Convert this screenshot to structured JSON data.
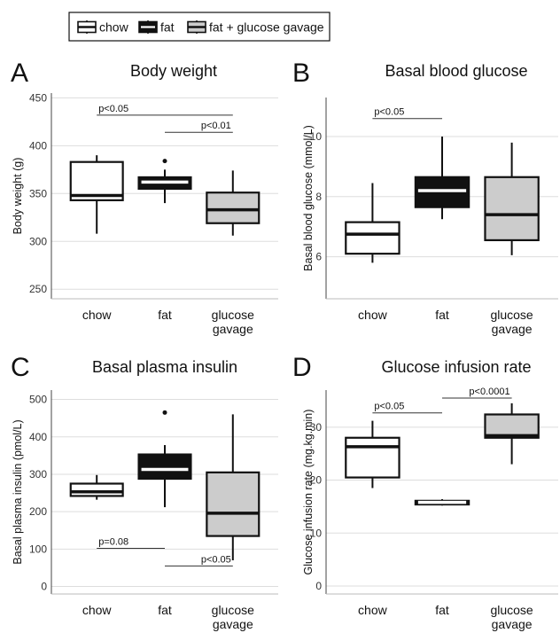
{
  "legend": {
    "items": [
      {
        "label": "chow",
        "fill": "#ffffff",
        "median": "#111111"
      },
      {
        "label": "fat",
        "fill": "#111111",
        "median": "#ffffff"
      },
      {
        "label": "fat + glucose gavage",
        "fill": "#cccccc",
        "median": "#111111"
      }
    ]
  },
  "chart_data": [
    {
      "type": "box",
      "panel": "A",
      "title": "Body weight",
      "ylabel": "Body weight (g)",
      "ylim": [
        240,
        455
      ],
      "yticks": [
        250,
        300,
        350,
        400,
        450
      ],
      "categories": [
        "chow",
        "fat",
        "glucose\ngavage"
      ],
      "boxes": [
        {
          "min": 308,
          "q1": 343,
          "median": 348,
          "q3": 383,
          "max": 390,
          "outliers": [],
          "fill": "#ffffff",
          "median_color": "#111111"
        },
        {
          "min": 340,
          "q1": 355,
          "median": 362,
          "q3": 367,
          "max": 375,
          "outliers": [
            384
          ],
          "fill": "#111111",
          "median_color": "#ffffff"
        },
        {
          "min": 306,
          "q1": 319,
          "median": 333,
          "q3": 351,
          "max": 374,
          "outliers": [],
          "fill": "#cccccc",
          "median_color": "#111111"
        }
      ],
      "annotations": [
        {
          "from": 0,
          "to": 2,
          "y": 432,
          "label": "p<0.05",
          "label_anchor": "start"
        },
        {
          "from": 1,
          "to": 2,
          "y": 414,
          "label": "p<0.01",
          "label_anchor": "end"
        }
      ]
    },
    {
      "type": "box",
      "panel": "B",
      "title": "Basal blood glucose",
      "ylabel": "Basal blood glucose (mmol/L)",
      "ylim": [
        4.6,
        11.3
      ],
      "yticks": [
        6,
        8,
        10
      ],
      "categories": [
        "chow",
        "fat",
        "glucose\ngavage"
      ],
      "boxes": [
        {
          "min": 5.8,
          "q1": 6.1,
          "median": 6.75,
          "q3": 7.15,
          "max": 8.45,
          "outliers": [],
          "fill": "#ffffff",
          "median_color": "#111111"
        },
        {
          "min": 7.25,
          "q1": 7.65,
          "median": 8.2,
          "q3": 8.65,
          "max": 10.0,
          "outliers": [],
          "fill": "#111111",
          "median_color": "#ffffff"
        },
        {
          "min": 6.05,
          "q1": 6.55,
          "median": 7.4,
          "q3": 8.65,
          "max": 9.8,
          "outliers": [],
          "fill": "#cccccc",
          "median_color": "#111111"
        }
      ],
      "annotations": [
        {
          "from": 0,
          "to": 1,
          "y": 10.6,
          "label": "p<0.05",
          "label_anchor": "start"
        }
      ]
    },
    {
      "type": "box",
      "panel": "C",
      "title": "Basal plasma insulin",
      "ylabel": "Basal plasma insulin (pmol/L)",
      "ylim": [
        -20,
        525
      ],
      "yticks": [
        0,
        100,
        200,
        300,
        400,
        500
      ],
      "categories": [
        "chow",
        "fat",
        "glucose\ngavage"
      ],
      "boxes": [
        {
          "min": 232,
          "q1": 242,
          "median": 253,
          "q3": 275,
          "max": 298,
          "outliers": [],
          "fill": "#ffffff",
          "median_color": "#111111"
        },
        {
          "min": 212,
          "q1": 288,
          "median": 313,
          "q3": 353,
          "max": 378,
          "outliers": [
            465
          ],
          "fill": "#111111",
          "median_color": "#ffffff"
        },
        {
          "min": 70,
          "q1": 135,
          "median": 196,
          "q3": 305,
          "max": 460,
          "outliers": [],
          "fill": "#cccccc",
          "median_color": "#111111"
        }
      ],
      "annotations": [
        {
          "from": 0,
          "to": 1,
          "y": 102,
          "label": "p=0.08",
          "label_anchor": "start"
        },
        {
          "from": 1,
          "to": 2,
          "y": 55,
          "label": "p<0.05",
          "label_anchor": "end"
        }
      ]
    },
    {
      "type": "box",
      "panel": "D",
      "title": "Glucose infusion rate",
      "ylabel": "Glucose infusion rate (mg.kg.min)",
      "ylim": [
        -1.5,
        37
      ],
      "yticks": [
        0,
        10,
        20,
        30
      ],
      "categories": [
        "chow",
        "fat",
        "glucose\ngavage"
      ],
      "boxes": [
        {
          "min": 18.5,
          "q1": 20.5,
          "median": 26.3,
          "q3": 28.0,
          "max": 31.2,
          "outliers": [],
          "fill": "#ffffff",
          "median_color": "#111111"
        },
        {
          "min": 15.2,
          "q1": 15.4,
          "median": 15.8,
          "q3": 16.1,
          "max": 16.4,
          "outliers": [],
          "fill": "#111111",
          "median_color": "#ffffff"
        },
        {
          "min": 23.0,
          "q1": 28.0,
          "median": 28.4,
          "q3": 32.4,
          "max": 34.5,
          "outliers": [],
          "fill": "#cccccc",
          "median_color": "#111111"
        }
      ],
      "annotations": [
        {
          "from": 0,
          "to": 1,
          "y": 32.7,
          "label": "p<0.05",
          "label_anchor": "start"
        },
        {
          "from": 1,
          "to": 2,
          "y": 35.5,
          "label": "p<0.0001",
          "label_anchor": "end"
        }
      ]
    }
  ]
}
